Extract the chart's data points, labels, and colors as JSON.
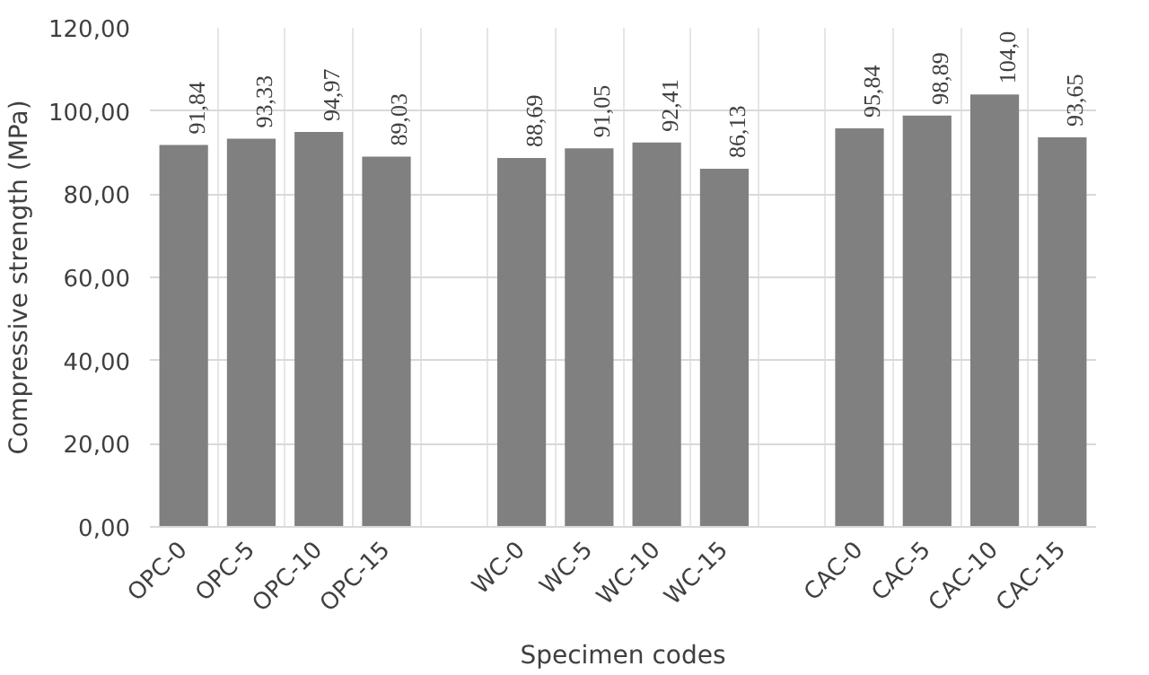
{
  "chart_data": {
    "type": "bar",
    "xlabel": "Specimen codes",
    "ylabel": "Compressive strength (MPa)",
    "categories": [
      "OPC-0",
      "OPC-5",
      "OPC-10",
      "OPC-15",
      null,
      "WC-0",
      "WC-5",
      "WC-10",
      "WC-15",
      null,
      "CAC-0",
      "CAC-5",
      "CAC-10",
      "CAC-15"
    ],
    "values": [
      91.84,
      93.33,
      94.97,
      89.03,
      null,
      88.69,
      91.05,
      92.41,
      86.13,
      null,
      95.84,
      98.89,
      104.0,
      93.65
    ],
    "value_labels": [
      "91,84",
      "93,33",
      "94,97",
      "89,03",
      null,
      "88,69",
      "91,05",
      "92,41",
      "86,13",
      null,
      "95,84",
      "98,89",
      "104,0",
      "93,65"
    ],
    "color": "#808080",
    "ylim": [
      0,
      120
    ],
    "yticks": [
      {
        "value": 0,
        "label": "0,00"
      },
      {
        "value": 20,
        "label": "20,00"
      },
      {
        "value": 40,
        "label": "40,00"
      },
      {
        "value": 60,
        "label": "60,00"
      },
      {
        "value": 80,
        "label": "80,00"
      },
      {
        "value": 100,
        "label": "100,00"
      },
      {
        "value": 120,
        "label": "120,00"
      }
    ],
    "grid": true
  }
}
